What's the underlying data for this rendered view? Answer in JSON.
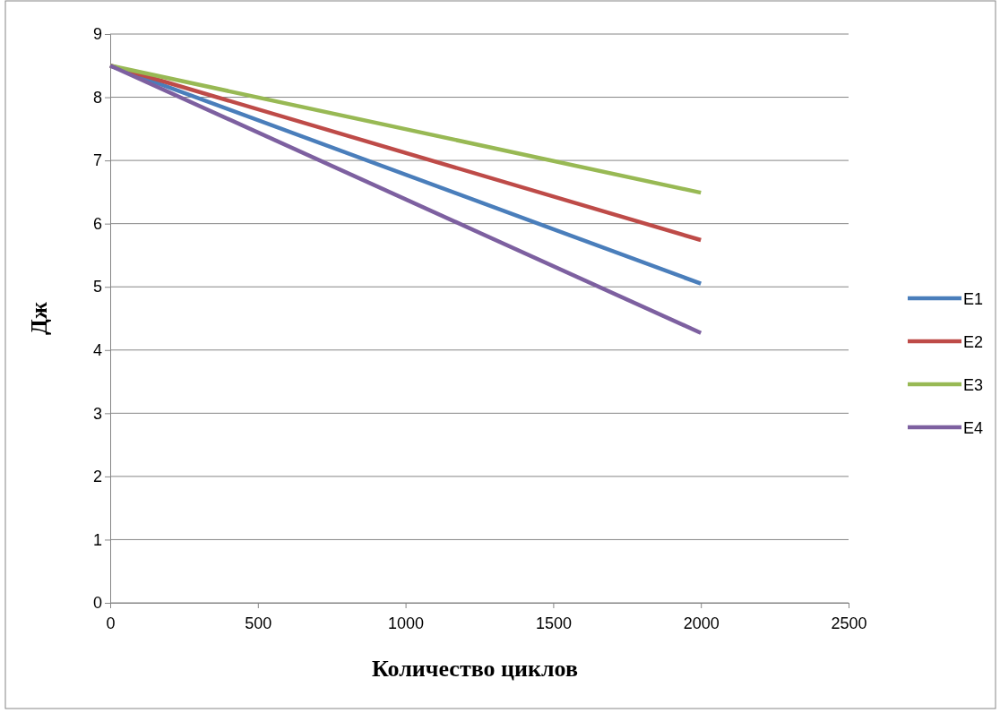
{
  "chart_data": {
    "type": "line",
    "xlabel": "Количество циклов",
    "ylabel": "Дж",
    "xlim": [
      0,
      2500
    ],
    "xticks": [
      0,
      500,
      1000,
      1500,
      2000,
      2500
    ],
    "ylim": [
      0,
      9
    ],
    "yticks": [
      0,
      1,
      2,
      3,
      4,
      5,
      6,
      7,
      8,
      9
    ],
    "grid": "y",
    "legend": "right",
    "marker": "none",
    "line_style": "solid",
    "x": [
      0,
      2000
    ],
    "series": [
      {
        "name": "E1",
        "color": "#4a7ebb",
        "values": [
          8.5,
          5.05
        ]
      },
      {
        "name": "E2",
        "color": "#be4b48",
        "values": [
          8.5,
          5.74
        ]
      },
      {
        "name": "E3",
        "color": "#98b954",
        "values": [
          8.5,
          6.49
        ]
      },
      {
        "name": "E4",
        "color": "#7d60a0",
        "values": [
          8.5,
          4.27
        ]
      }
    ]
  }
}
